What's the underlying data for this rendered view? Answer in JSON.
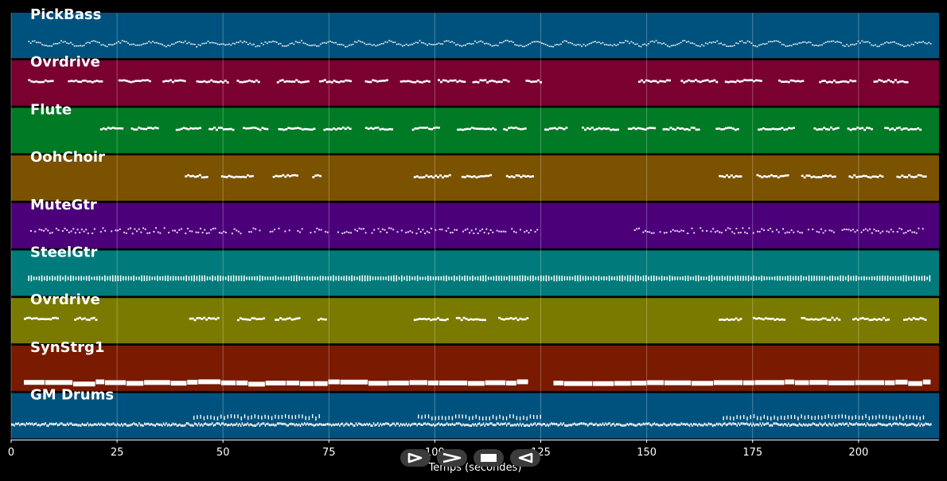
{
  "chart_data": {
    "type": "piano-roll",
    "xlabel": "Temps (secondes)",
    "xlim": [
      0,
      219
    ],
    "xticks": [
      0,
      25,
      50,
      75,
      100,
      125,
      150,
      175,
      200
    ],
    "grid": true,
    "tracks": [
      {
        "label": "PickBass",
        "color": "#00527e",
        "style": "wave",
        "segments": [
          [
            4,
            217
          ]
        ]
      },
      {
        "label": "Ovrdrive",
        "color": "#7a0030",
        "style": "phrase",
        "segments": [
          [
            4,
            125
          ],
          [
            148,
            216
          ]
        ]
      },
      {
        "label": "Flute",
        "color": "#007a24",
        "style": "phrase",
        "segments": [
          [
            21,
            217
          ]
        ]
      },
      {
        "label": "OohChoir",
        "color": "#7a5200",
        "style": "phrase",
        "segments": [
          [
            41,
            73
          ],
          [
            95,
            125
          ],
          [
            167,
            216
          ]
        ]
      },
      {
        "label": "MuteGtr",
        "color": "#4b007a",
        "style": "dots",
        "segments": [
          [
            4,
            125
          ],
          [
            147,
            216
          ]
        ]
      },
      {
        "label": "SteelGtr",
        "color": "#007a7a",
        "style": "ticks",
        "segments": [
          [
            4,
            217
          ]
        ]
      },
      {
        "label": "Ovrdrive",
        "color": "#7a7a00",
        "style": "phrase",
        "segments": [
          [
            3,
            20
          ],
          [
            42,
            74
          ],
          [
            95,
            125
          ],
          [
            167,
            216
          ]
        ]
      },
      {
        "label": "SynStrg1",
        "color": "#7a1a00",
        "style": "bars",
        "segments": [
          [
            3,
            122
          ],
          [
            128,
            217
          ]
        ]
      },
      {
        "label": "GM Drums",
        "color": "#00527e",
        "style": "drums",
        "segments": [
          [
            0,
            217
          ]
        ]
      }
    ]
  },
  "controls": {
    "play_icon": "play-icon",
    "fast_forward_icon": "fast-forward-icon",
    "stop_icon": "stop-icon",
    "rewind_icon": "rewind-icon"
  }
}
